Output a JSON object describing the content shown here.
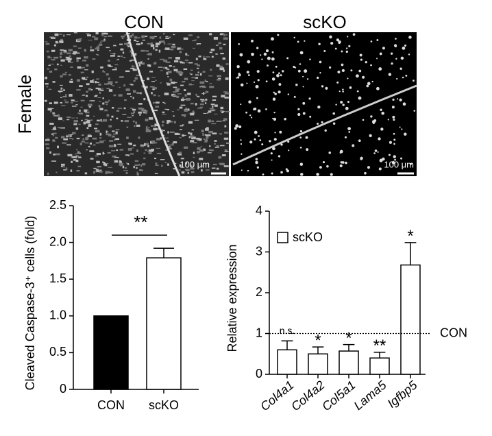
{
  "panel": {
    "columns": [
      "CON",
      "scKO"
    ],
    "row_label": "Female",
    "scale_bars": [
      "100 μm",
      "100 μm"
    ]
  },
  "chart_data": [
    {
      "type": "bar",
      "ylabel": "Cleaved Caspase-3⁺ cells (fold)",
      "categories": [
        "CON",
        "scKO"
      ],
      "series": [
        {
          "values": [
            1.0,
            1.79
          ],
          "errors": [
            0,
            0.13
          ],
          "colors": [
            "#000000",
            "#ffffff"
          ]
        }
      ],
      "ylim": [
        0,
        2.5
      ],
      "yticks": [
        0,
        0.5,
        {
          "value": 1,
          "label": "1.0"
        },
        1.5,
        {
          "value": 2,
          "label": "2.0"
        },
        2.5
      ],
      "significance": "**"
    },
    {
      "type": "bar",
      "ylabel": "Relative expression",
      "categories": [
        "Col4a1",
        "Col4a2",
        "Col5a1",
        "Lama5",
        "Igfbp5"
      ],
      "series": [
        {
          "name": "scKO",
          "color": "#ffffff",
          "values": [
            0.6,
            0.5,
            0.57,
            0.4,
            2.68
          ],
          "errors": [
            0.22,
            0.17,
            0.16,
            0.14,
            0.55
          ]
        }
      ],
      "value_annotations": [
        "n.s.",
        "*",
        "*",
        "**",
        "*"
      ],
      "reference_line": {
        "value": 1,
        "label": "CON"
      },
      "ylim": [
        0,
        4
      ],
      "yticks": [
        0,
        1,
        2,
        3,
        4
      ],
      "legend": "top-left"
    }
  ]
}
